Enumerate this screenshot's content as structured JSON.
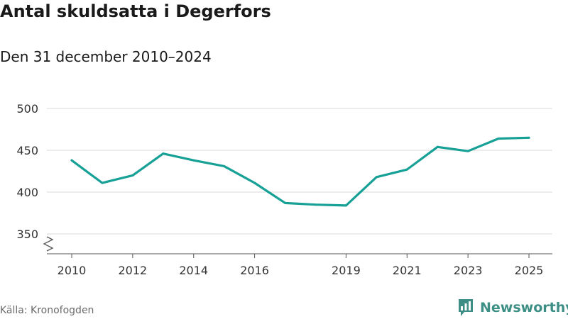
{
  "header": {
    "title": "Antal skuldsatta i Degerfors",
    "subtitle": "Den 31 december 2010–2024"
  },
  "footer": {
    "source": "Källa: Kronofogden",
    "brand_name": "Newsworthy",
    "brand_icon": "bar-chart-icon"
  },
  "chart_data": {
    "type": "line",
    "xlabel": "",
    "ylabel": "",
    "x": [
      2010,
      2011,
      2012,
      2013,
      2014,
      2015,
      2016,
      2017,
      2018,
      2019,
      2020,
      2021,
      2022,
      2023,
      2024,
      2025
    ],
    "series": [
      {
        "values": [
          438,
          411,
          420,
          446,
          438,
          431,
          411,
          387,
          385,
          384,
          418,
          427,
          454,
          449,
          464,
          465
        ]
      }
    ],
    "x_ticks": [
      "2010",
      "2012",
      "2014",
      "2016",
      "2019",
      "2021",
      "2023",
      "2025"
    ],
    "y_ticks": [
      "350",
      "400",
      "450",
      "500"
    ],
    "ylim": [
      350,
      500
    ],
    "xlim": [
      2010,
      2025
    ],
    "y_axis_break": true,
    "grid": true,
    "line_color": "#17a096",
    "grid_color": "#d9d9d9"
  }
}
